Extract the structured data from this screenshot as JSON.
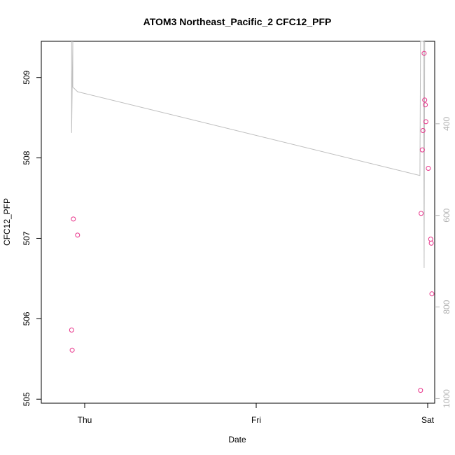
{
  "chart_data": {
    "type": "scatter",
    "title": "ATOM3 Northeast_Pacific_2 CFC12_PFP",
    "xlabel": "Date",
    "ylabel": "CFC12_PFP",
    "x_ticks": [
      "Thu",
      "Fri",
      "Sat"
    ],
    "y_ticks": [
      505,
      506,
      507,
      508,
      509
    ],
    "y2_ticks": [
      400,
      600,
      800,
      1000
    ],
    "ylim": [
      504.95,
      509.45
    ],
    "y2lim": [
      1010,
      220
    ],
    "colors": {
      "points": "#e8338a",
      "line": "#bebebe",
      "right_axis": "#b3b3b3",
      "axis": "#000000"
    },
    "points": [
      {
        "x": "Wed 22:10",
        "y": 505.86
      },
      {
        "x": "Wed 22:15",
        "y": 505.61
      },
      {
        "x": "Wed 22:25",
        "y": 507.24
      },
      {
        "x": "Wed 23:00",
        "y": 507.04
      },
      {
        "x": "Fri 23:00",
        "y": 505.11
      },
      {
        "x": "Fri 23:05",
        "y": 507.31
      },
      {
        "x": "Fri 23:15",
        "y": 508.1
      },
      {
        "x": "Fri 23:20",
        "y": 508.34
      },
      {
        "x": "Fri 23:30",
        "y": 509.3
      },
      {
        "x": "Fri 23:35",
        "y": 508.72
      },
      {
        "x": "Fri 23:40",
        "y": 508.66
      },
      {
        "x": "Fri 23:45",
        "y": 508.45
      },
      {
        "x": "Sat 00:05",
        "y": 507.87
      },
      {
        "x": "Sat 00:25",
        "y": 506.99
      },
      {
        "x": "Sat 00:30",
        "y": 506.94
      },
      {
        "x": "Sat 00:35",
        "y": 506.31
      }
    ],
    "pressure_line": [
      {
        "x": "Wed 22:10",
        "y2": 220
      },
      {
        "x": "Wed 22:10",
        "y2": 420
      },
      {
        "x": "Wed 22:20",
        "y2": 220
      },
      {
        "x": "Wed 22:20",
        "y2": 320
      },
      {
        "x": "Wed 23:00",
        "y2": 330
      },
      {
        "x": "Fri 22:55",
        "y2": 513
      },
      {
        "x": "Fri 23:00",
        "y2": 220
      },
      {
        "x": "Fri 23:25",
        "y2": 220
      },
      {
        "x": "Fri 23:30",
        "y2": 715
      },
      {
        "x": "Fri 23:35",
        "y2": 220
      }
    ]
  }
}
